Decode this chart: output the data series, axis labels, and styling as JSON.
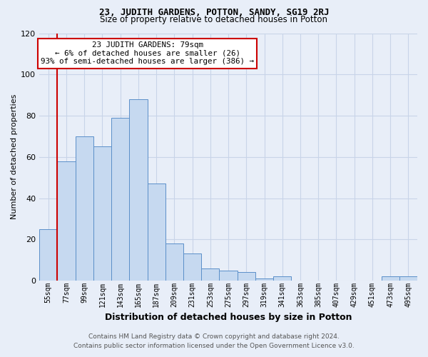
{
  "title_line1": "23, JUDITH GARDENS, POTTON, SANDY, SG19 2RJ",
  "title_line2": "Size of property relative to detached houses in Potton",
  "xlabel": "Distribution of detached houses by size in Potton",
  "ylabel": "Number of detached properties",
  "footer_line1": "Contains HM Land Registry data © Crown copyright and database right 2024.",
  "footer_line2": "Contains public sector information licensed under the Open Government Licence v3.0.",
  "annotation_line1": "23 JUDITH GARDENS: 79sqm",
  "annotation_line2": "← 6% of detached houses are smaller (26)",
  "annotation_line3": "93% of semi-detached houses are larger (386) →",
  "bar_labels": [
    "55sqm",
    "77sqm",
    "99sqm",
    "121sqm",
    "143sqm",
    "165sqm",
    "187sqm",
    "209sqm",
    "231sqm",
    "253sqm",
    "275sqm",
    "297sqm",
    "319sqm",
    "341sqm",
    "363sqm",
    "385sqm",
    "407sqm",
    "429sqm",
    "451sqm",
    "473sqm",
    "495sqm"
  ],
  "bar_values": [
    25,
    58,
    70,
    65,
    79,
    88,
    47,
    18,
    13,
    6,
    5,
    4,
    1,
    2,
    0,
    0,
    0,
    0,
    0,
    2,
    2
  ],
  "bar_color": "#c6d9f0",
  "bar_edge_color": "#5b8fc9",
  "property_line_x": 0.5,
  "property_line_color": "#cc0000",
  "annotation_box_color": "#ffffff",
  "annotation_box_edge_color": "#cc0000",
  "ylim": [
    0,
    120
  ],
  "yticks": [
    0,
    20,
    40,
    60,
    80,
    100,
    120
  ],
  "grid_color": "#c8d4e8",
  "background_color": "#e8eef8",
  "title1_fontsize": 9,
  "title2_fontsize": 8.5,
  "ylabel_fontsize": 8,
  "xlabel_fontsize": 9,
  "tick_fontsize": 7,
  "footer_fontsize": 6.5
}
